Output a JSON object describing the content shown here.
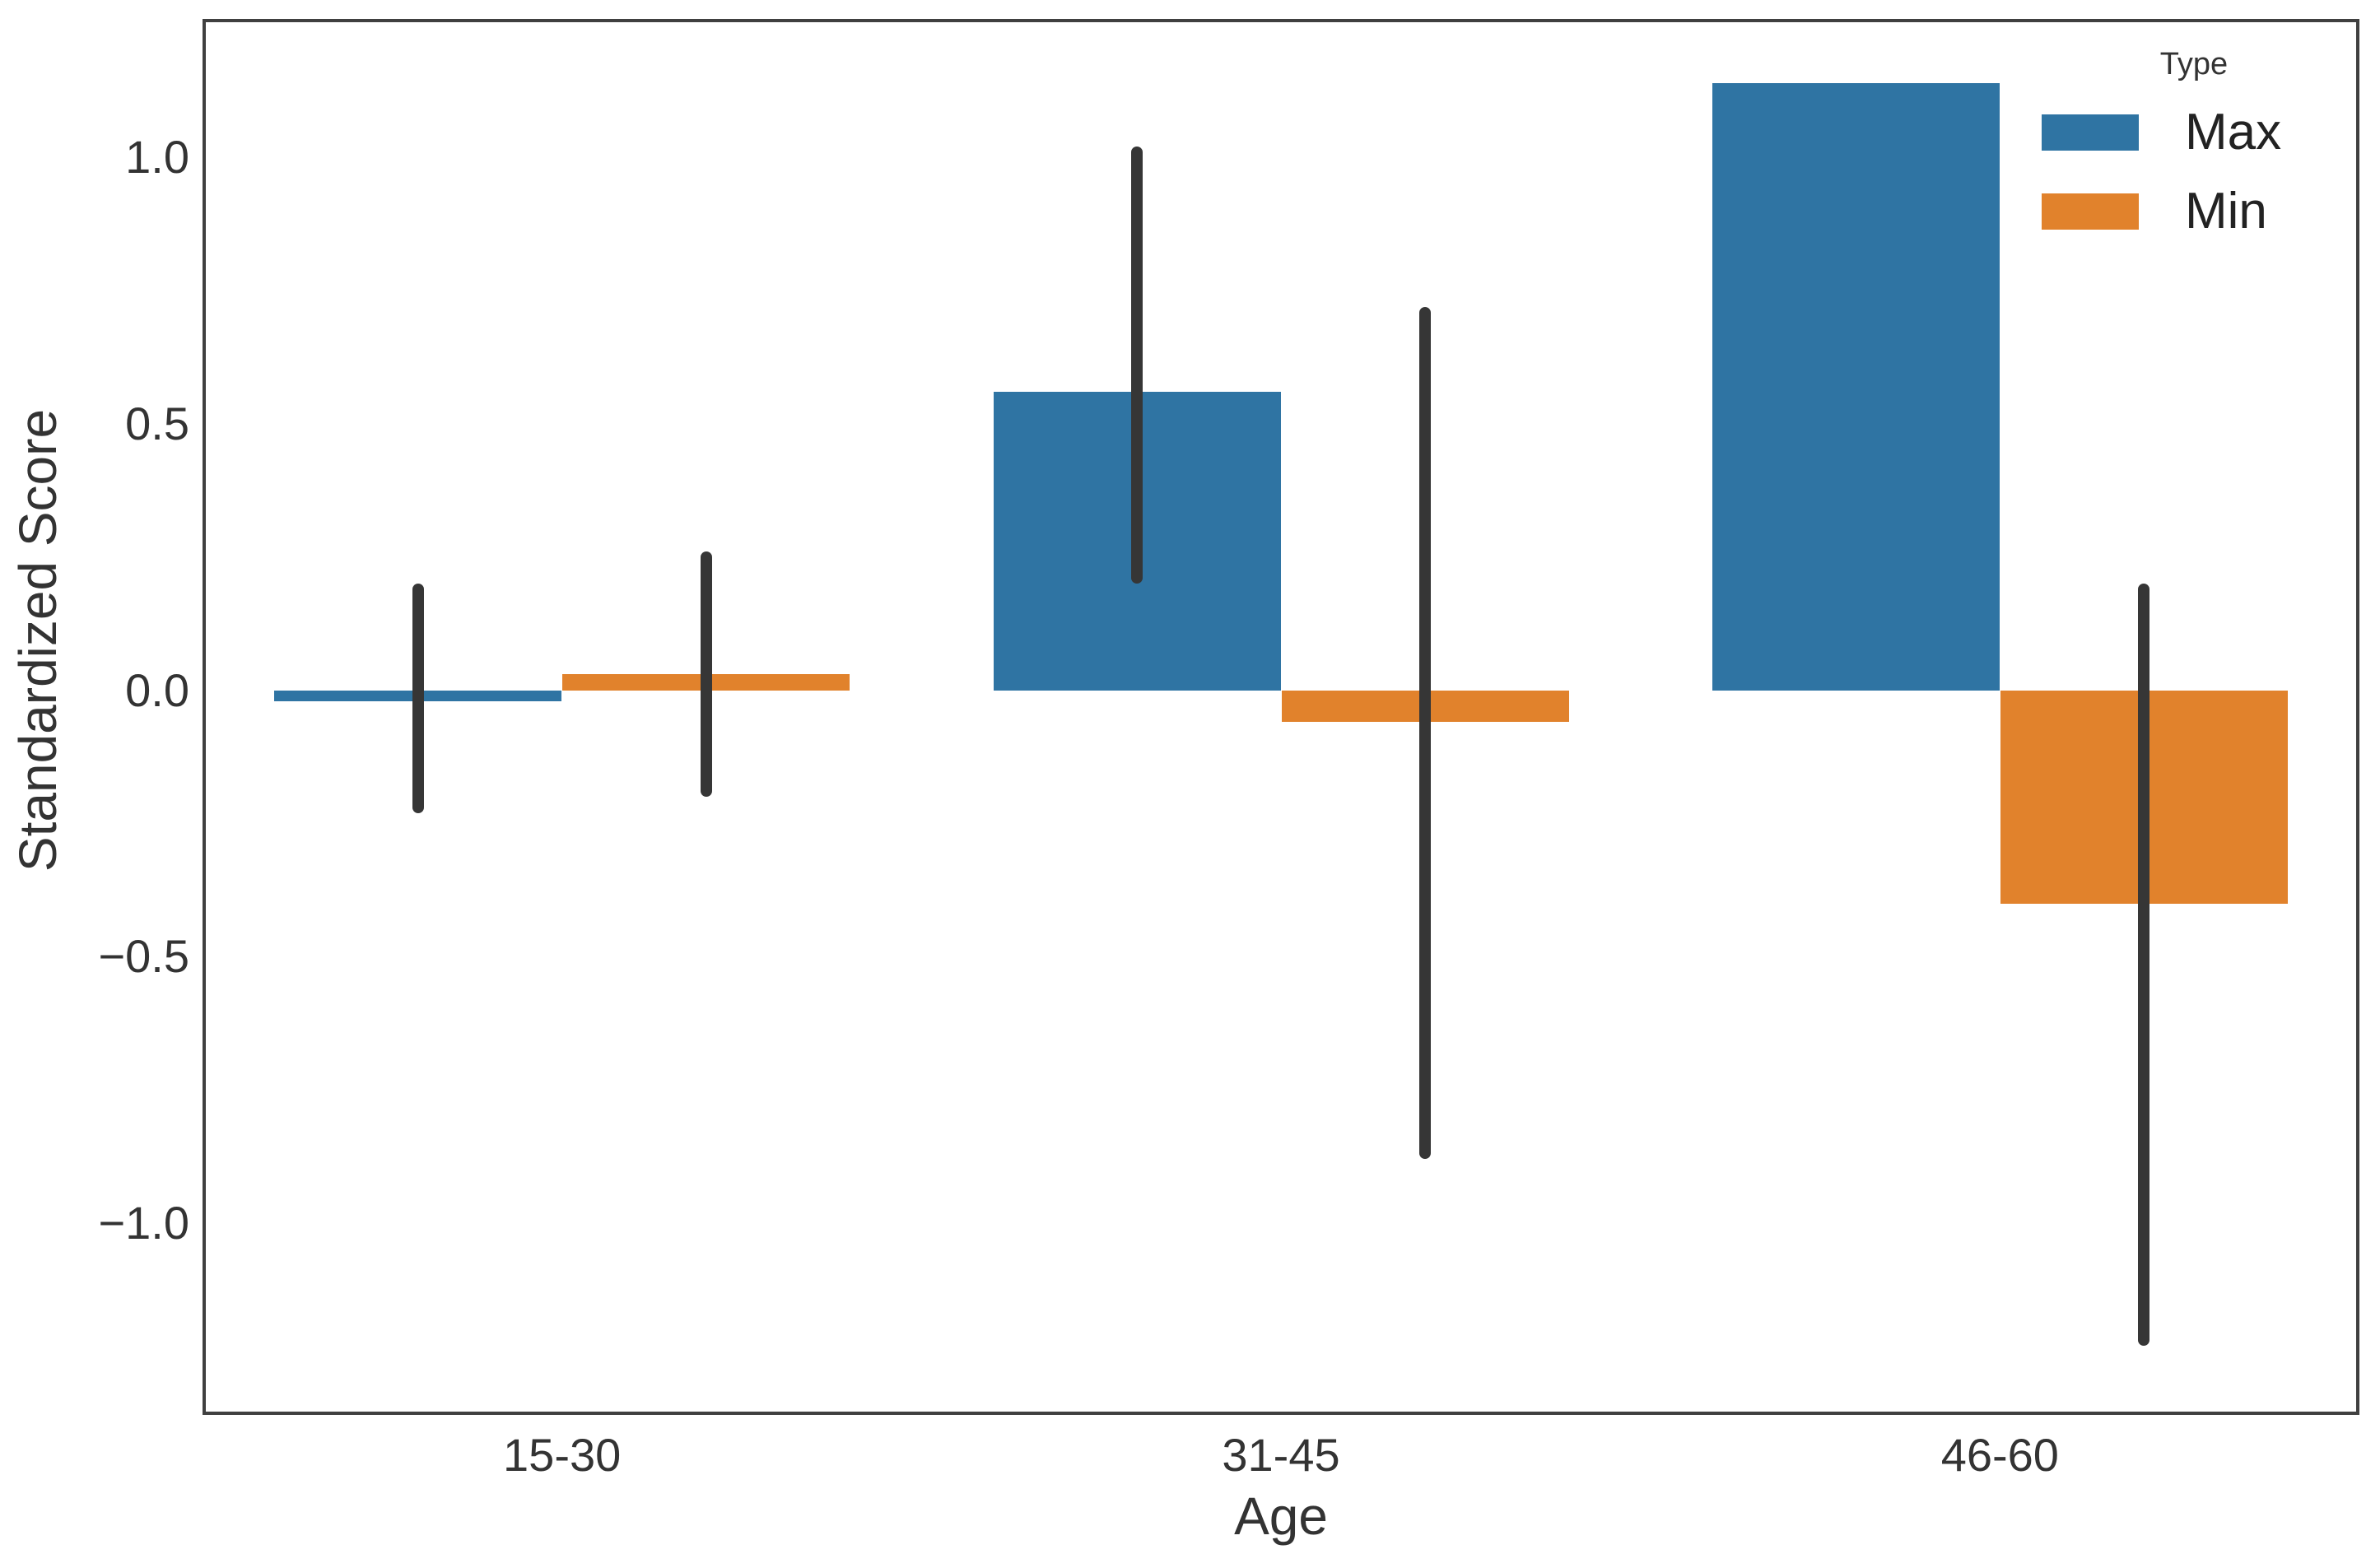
{
  "colors": {
    "max": "#2F74A3",
    "min": "#E1822C",
    "error_bar": "#363636",
    "spine": "#404040",
    "text": "#333333"
  },
  "chart_data": {
    "type": "bar",
    "title": "",
    "categories": [
      "15-30",
      "31-45",
      "46-60"
    ],
    "series": [
      {
        "name": "Max",
        "color_key": "max",
        "values": [
          -0.02,
          0.56,
          1.14
        ],
        "error_intervals": [
          [
            -0.23,
            0.2
          ],
          [
            0.2,
            1.02
          ],
          null
        ]
      },
      {
        "name": "Min",
        "color_key": "min",
        "values": [
          0.03,
          -0.06,
          -0.4
        ],
        "error_intervals": [
          [
            -0.2,
            0.26
          ],
          [
            -0.88,
            0.72
          ],
          [
            -1.23,
            0.2
          ]
        ]
      }
    ],
    "xlabel": "Age",
    "ylabel": "Standardized Score",
    "ylim": [
      -1.36,
      1.26
    ],
    "yticks": [
      {
        "v": 1.0,
        "label": "1.0"
      },
      {
        "v": 0.5,
        "label": "0.5"
      },
      {
        "v": 0.0,
        "label": "0.0"
      },
      {
        "v": -0.5,
        "label": "−0.5"
      },
      {
        "v": -1.0,
        "label": "−1.0"
      }
    ],
    "legend": {
      "title": "Type",
      "position": "upper-right"
    },
    "grid": false,
    "error_bars": true
  }
}
